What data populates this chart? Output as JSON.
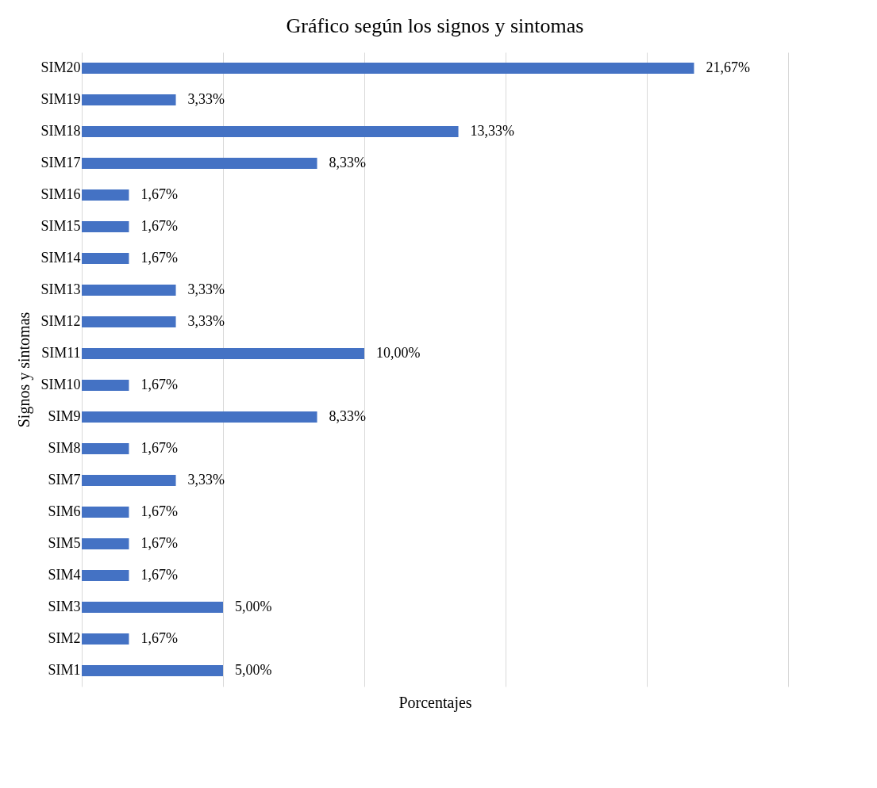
{
  "chart_data": {
    "type": "bar",
    "orientation": "horizontal",
    "title": "Gráfico según los signos y sintomas",
    "xlabel": "Porcentajes",
    "ylabel": "Signos y sintomas",
    "categories": [
      "SIM20",
      "SIM19",
      "SIM18",
      "SIM17",
      "SIM16",
      "SIM15",
      "SIM14",
      "SIM13",
      "SIM12",
      "SIM11",
      "SIM10",
      "SIM9",
      "SIM8",
      "SIM7",
      "SIM6",
      "SIM5",
      "SIM4",
      "SIM3",
      "SIM2",
      "SIM1"
    ],
    "values": [
      21.67,
      3.33,
      13.33,
      8.33,
      1.67,
      1.67,
      1.67,
      3.33,
      3.33,
      10.0,
      1.67,
      8.33,
      1.67,
      3.33,
      1.67,
      1.67,
      1.67,
      5.0,
      1.67,
      5.0
    ],
    "value_labels": [
      "21,67%",
      "3,33%",
      "13,33%",
      "8,33%",
      "1,67%",
      "1,67%",
      "1,67%",
      "3,33%",
      "3,33%",
      "10,00%",
      "1,67%",
      "8,33%",
      "1,67%",
      "3,33%",
      "1,67%",
      "1,67%",
      "1,67%",
      "5,00%",
      "1,67%",
      "5,00%"
    ],
    "color": "#4472c4",
    "xlim": [
      0,
      25
    ],
    "xticks": [
      {
        "value": 0,
        "label": null
      },
      {
        "value": 5,
        "label": null
      },
      {
        "value": 10,
        "label": null
      },
      {
        "value": 15,
        "label": null
      },
      {
        "value": 20,
        "label": null
      },
      {
        "value": 25,
        "label": null
      }
    ],
    "tick_labels": "y",
    "grid": "x"
  }
}
